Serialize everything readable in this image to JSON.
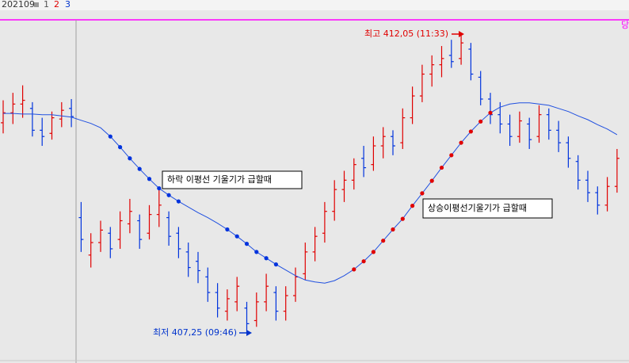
{
  "header": {
    "code": "202109",
    "tabs": [
      "1",
      "2",
      "3"
    ],
    "edge": "당"
  },
  "chart_data": {
    "type": "ohlc",
    "open": [
      410.62,
      410.78,
      410.92,
      410.85,
      410.5,
      410.45,
      410.68,
      410.85,
      409.1,
      408.5,
      408.7,
      408.85,
      408.75,
      409.0,
      409.05,
      408.85,
      409.15,
      409.1,
      408.85,
      408.55,
      408.4,
      408.15,
      407.9,
      407.6,
      407.75,
      407.65,
      407.45,
      407.75,
      407.9,
      407.6,
      407.85,
      408.2,
      408.55,
      408.85,
      409.2,
      409.55,
      409.7,
      410.05,
      409.95,
      410.25,
      410.4,
      410.3,
      410.7,
      411.05,
      411.4,
      411.55,
      411.7,
      411.65,
      411.8,
      411.35,
      411.0,
      410.75,
      410.6,
      410.4,
      410.6,
      410.4,
      410.75,
      410.5,
      410.3,
      410.0,
      409.7,
      409.5,
      409.3,
      409.6
    ],
    "high": [
      410.98,
      411.1,
      411.22,
      410.95,
      410.7,
      410.8,
      410.95,
      411.0,
      409.35,
      408.85,
      409.05,
      408.95,
      409.2,
      409.4,
      409.15,
      409.3,
      409.55,
      409.2,
      408.95,
      408.7,
      408.55,
      408.3,
      408.05,
      407.95,
      408.15,
      407.75,
      407.9,
      408.2,
      408.0,
      408.0,
      408.3,
      408.7,
      408.95,
      409.35,
      409.7,
      409.85,
      410.05,
      410.25,
      410.4,
      410.55,
      410.5,
      410.85,
      411.2,
      411.55,
      411.7,
      411.85,
      411.95,
      412.05,
      411.9,
      411.45,
      411.1,
      410.95,
      410.75,
      410.8,
      410.7,
      410.9,
      410.85,
      410.65,
      410.4,
      410.1,
      409.85,
      409.6,
      409.75,
      410.2
    ],
    "low": [
      410.45,
      410.6,
      410.7,
      410.4,
      410.25,
      410.35,
      410.55,
      410.55,
      408.55,
      408.3,
      408.55,
      408.45,
      408.6,
      408.85,
      408.6,
      408.75,
      408.95,
      408.65,
      408.45,
      408.15,
      408.05,
      407.75,
      407.5,
      407.45,
      407.6,
      407.25,
      407.35,
      407.6,
      407.45,
      407.45,
      407.75,
      408.1,
      408.4,
      408.7,
      409.05,
      409.35,
      409.55,
      409.75,
      409.85,
      410.05,
      410.1,
      410.2,
      410.6,
      410.95,
      411.2,
      411.35,
      411.5,
      411.55,
      411.3,
      410.9,
      410.6,
      410.45,
      410.25,
      410.3,
      410.2,
      410.3,
      410.35,
      410.15,
      409.9,
      409.55,
      409.35,
      409.15,
      409.2,
      409.5
    ],
    "close": [
      410.78,
      410.92,
      410.98,
      410.5,
      410.4,
      410.7,
      410.82,
      410.72,
      408.75,
      408.7,
      408.9,
      408.6,
      409.05,
      409.2,
      408.75,
      409.15,
      409.3,
      408.8,
      408.6,
      408.3,
      408.25,
      407.9,
      407.65,
      407.8,
      408.0,
      407.4,
      407.75,
      408.0,
      407.6,
      407.85,
      408.15,
      408.55,
      408.8,
      409.2,
      409.55,
      409.7,
      409.95,
      409.9,
      410.25,
      410.4,
      410.25,
      410.7,
      411.05,
      411.4,
      411.55,
      411.65,
      411.6,
      411.9,
      411.4,
      411.0,
      410.75,
      410.6,
      410.4,
      410.65,
      410.35,
      410.75,
      410.5,
      410.3,
      410.05,
      409.7,
      409.5,
      409.3,
      409.6,
      410.05
    ],
    "ma": [
      410.77,
      410.77,
      410.76,
      410.76,
      410.75,
      410.75,
      410.73,
      410.71,
      410.66,
      410.61,
      410.54,
      410.4,
      410.23,
      410.05,
      409.88,
      409.72,
      409.57,
      409.46,
      409.36,
      409.27,
      409.18,
      409.1,
      409.01,
      408.91,
      408.8,
      408.68,
      408.55,
      408.45,
      408.35,
      408.26,
      408.17,
      408.1,
      408.07,
      408.05,
      408.09,
      408.17,
      408.27,
      408.4,
      408.55,
      408.73,
      408.91,
      409.08,
      409.29,
      409.49,
      409.69,
      409.9,
      410.1,
      410.3,
      410.48,
      410.64,
      410.78,
      410.87,
      410.92,
      410.94,
      410.94,
      410.92,
      410.9,
      410.85,
      410.8,
      410.73,
      410.67,
      410.59,
      410.52,
      410.43
    ],
    "up_color": "#e00000",
    "down_color": "#0033dd",
    "ma_color": "#2050e0",
    "ylim": [
      406.77,
      412.27
    ],
    "annotations": [
      {
        "text": "최고 412,05 (11:33)",
        "color": "#e00000"
      },
      {
        "text": "최저 407,25 (09:46)",
        "color": "#0033cc"
      },
      {
        "text": "하락 이평선 기울기가 급할때",
        "color": "#000000"
      },
      {
        "text": "상승이평선기울기가 급할때",
        "color": "#000000"
      }
    ]
  }
}
